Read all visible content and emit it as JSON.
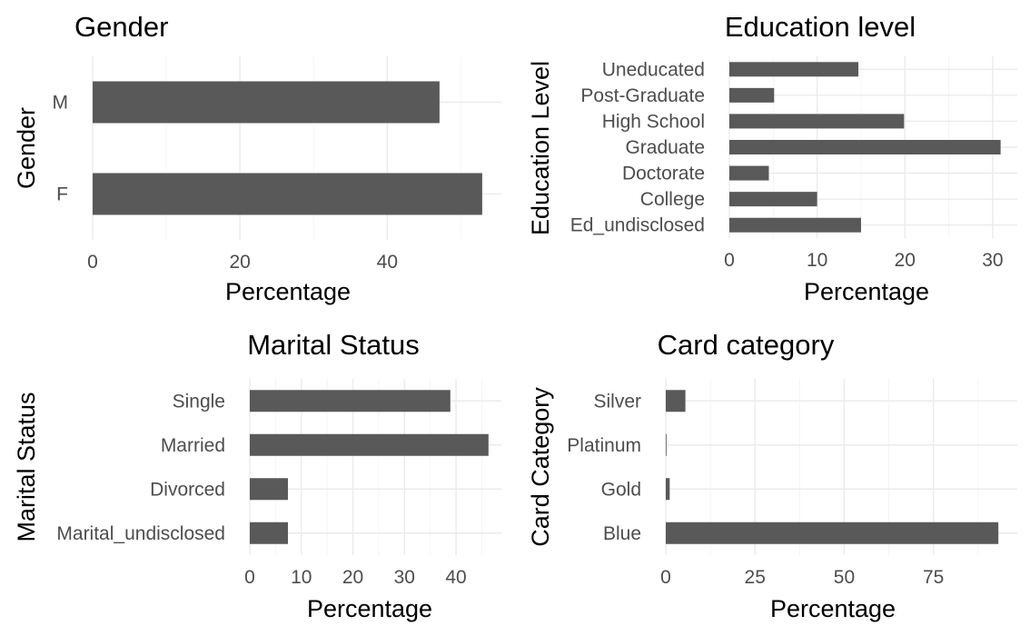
{
  "chart_data": [
    {
      "type": "bar",
      "orientation": "horizontal",
      "title": "Gender",
      "xlabel": "Percentage",
      "ylabel": "Gender",
      "categories": [
        "F",
        "M"
      ],
      "values": [
        52.9,
        47.1
      ],
      "xticks": [
        0,
        20,
        40
      ],
      "xlim": [
        0,
        55.5
      ],
      "grid": true,
      "bar_color": "#595959"
    },
    {
      "type": "bar",
      "orientation": "horizontal",
      "title": "Education level",
      "xlabel": "Percentage",
      "ylabel": "Education Level",
      "categories": [
        "Ed_undisclosed",
        "College",
        "Doctorate",
        "Graduate",
        "High School",
        "Post-Graduate",
        "Uneducated"
      ],
      "values": [
        15.0,
        10.0,
        4.5,
        30.9,
        19.9,
        5.1,
        14.7
      ],
      "xticks": [
        0,
        10,
        20,
        30
      ],
      "xlim": [
        0,
        32.8
      ],
      "grid": true,
      "bar_color": "#595959"
    },
    {
      "type": "bar",
      "orientation": "horizontal",
      "title": "Marital Status",
      "xlabel": "Percentage",
      "ylabel": "Marital Status",
      "categories": [
        "Marital_undisclosed",
        "Divorced",
        "Married",
        "Single"
      ],
      "values": [
        7.4,
        7.4,
        46.3,
        38.9
      ],
      "xticks": [
        0,
        10,
        20,
        30,
        40
      ],
      "xlim": [
        0,
        48.8
      ],
      "grid": true,
      "bar_color": "#595959"
    },
    {
      "type": "bar",
      "orientation": "horizontal",
      "title": "Card category",
      "xlabel": "Percentage",
      "ylabel": "Card Category",
      "categories": [
        "Blue",
        "Gold",
        "Platinum",
        "Silver"
      ],
      "values": [
        93.2,
        1.1,
        0.2,
        5.5
      ],
      "xticks": [
        0,
        25,
        50,
        75
      ],
      "xlim": [
        0,
        98.5
      ],
      "grid": true,
      "bar_color": "#595959"
    }
  ]
}
